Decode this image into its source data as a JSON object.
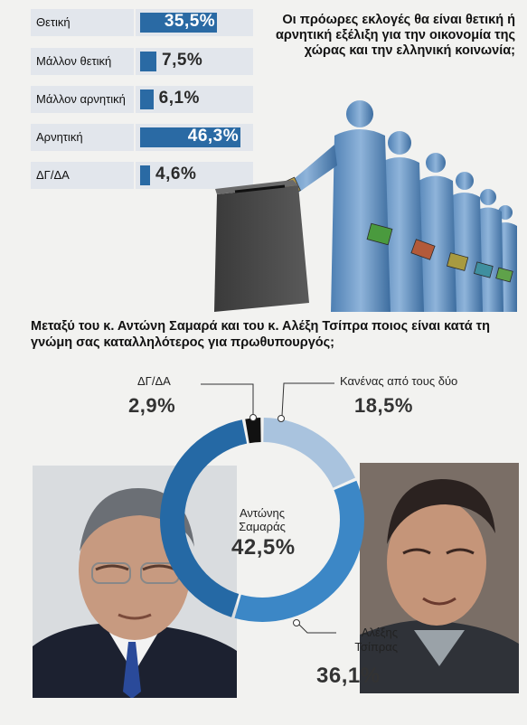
{
  "chart_data": [
    {
      "type": "bar",
      "title": "Οι πρόωρες εκλογές θα είναι θετική ή αρνητική εξέλιξη για την οικονομία της χώρας και την ελληνική κοινωνία;",
      "categories": [
        "Θετική",
        "Μάλλον θετική",
        "Μάλλον αρνητική",
        "Αρνητική",
        "ΔΓ/ΔΑ"
      ],
      "values": [
        35.5,
        7.5,
        6.1,
        46.3,
        4.6
      ],
      "value_labels": [
        "35,5%",
        "7,5%",
        "6,1%",
        "46,3%",
        "4,6%"
      ],
      "xlim": [
        0,
        50
      ],
      "color": "#2a6aa4"
    },
    {
      "type": "pie",
      "title": "Μεταξύ του κ. Αντώνη Σαμαρά και του κ. Αλέξη Τσίπρα ποιος είναι κατά τη γνώμη σας καταλληλότερος για πρωθυπουργός;",
      "slices": [
        {
          "label": "Κανένας από τους δύο",
          "value": 18.5,
          "value_label": "18,5%",
          "color": "#a9c3de"
        },
        {
          "label": "Αλέξης Τσίπρας",
          "value": 36.1,
          "value_label": "36,1%",
          "color": "#3c87c6"
        },
        {
          "label": "Αντώνης Σαμαράς",
          "value": 42.5,
          "value_label": "42,5%",
          "color": "#2569a5"
        },
        {
          "label": "ΔΓ/ΔΑ",
          "value": 2.9,
          "value_label": "2,9%",
          "color": "#111111"
        }
      ],
      "center_label_line1": "Αντώνης",
      "center_label_line2": "Σαμαράς",
      "center_value": "42,5%",
      "tsipras_line1": "Αλέξης",
      "tsipras_line2": "Τσίπρας"
    }
  ]
}
